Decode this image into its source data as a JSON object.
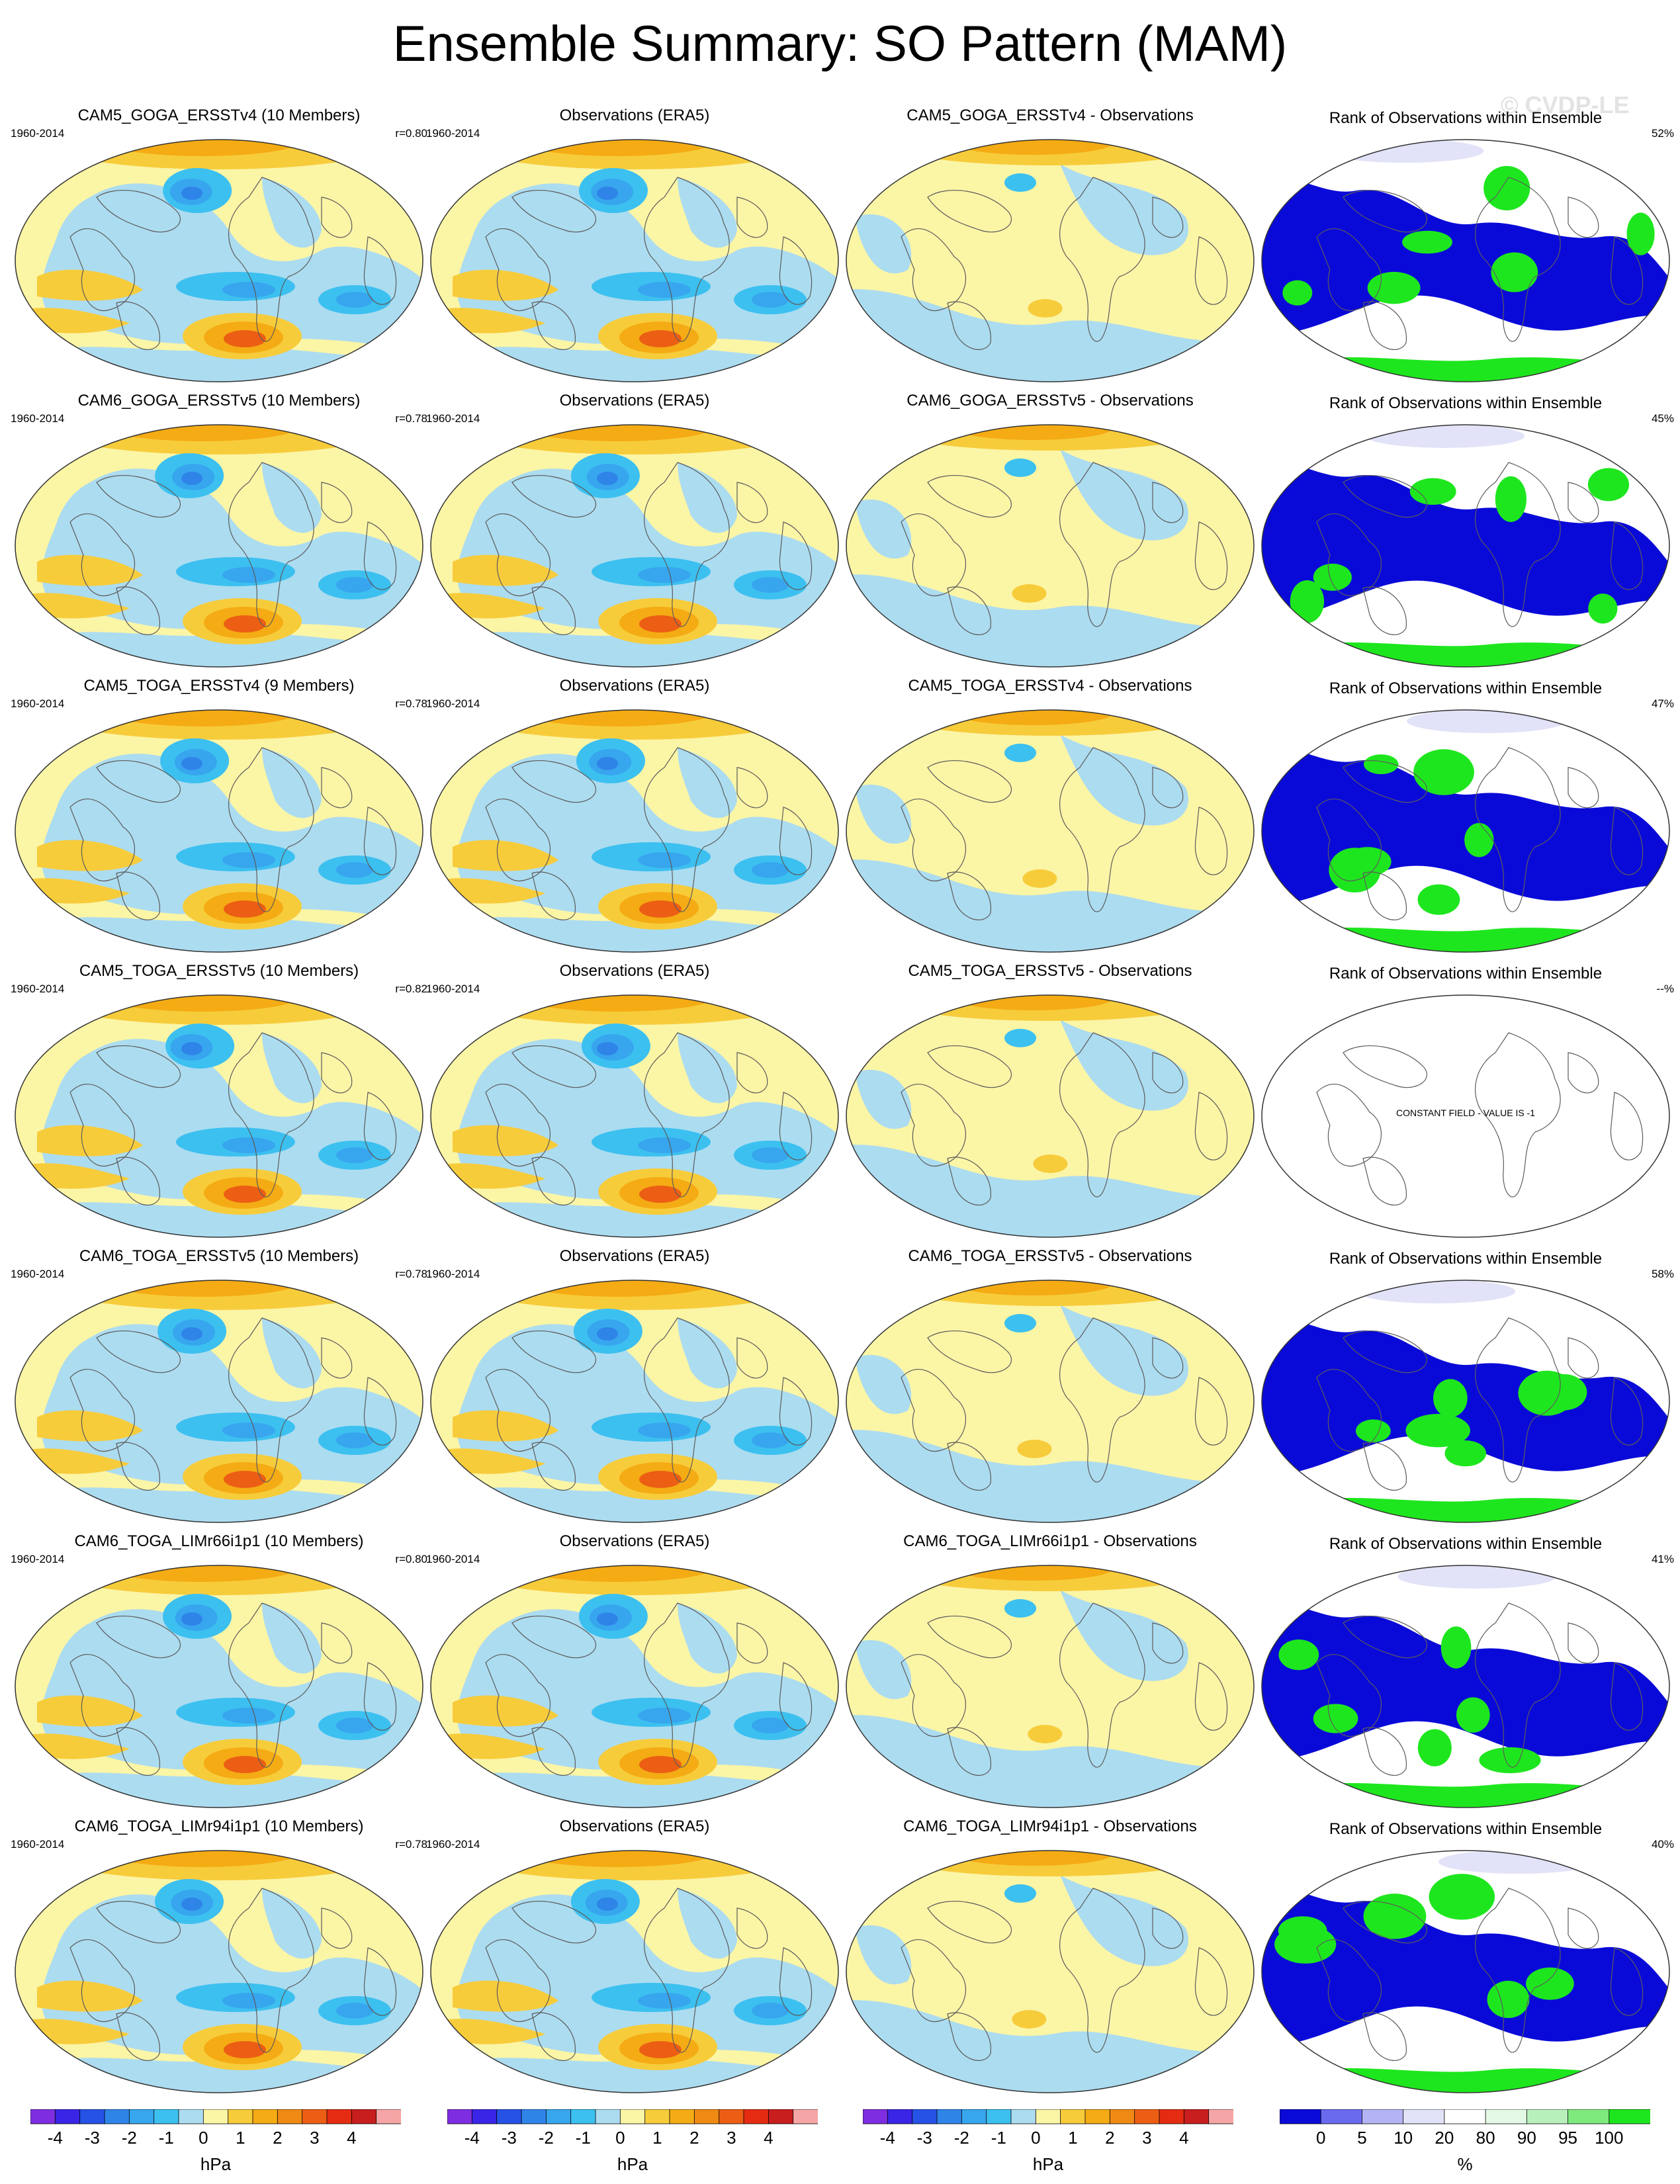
{
  "title": "Ensemble Summary: SO Pattern (MAM)",
  "watermark": "© CVDP-LE",
  "rows": [
    {
      "model_title": "CAM5_GOGA_ERSSTv4 (10 Members)",
      "years": "1960-2014",
      "r": "r=0.80",
      "obs_title": "Observations (ERA5)",
      "diff_title": "CAM5_GOGA_ERSSTv4 - Observations",
      "rank_title": "Rank of Observations within Ensemble",
      "rank_pct": "52%"
    },
    {
      "model_title": "CAM6_GOGA_ERSSTv5 (10 Members)",
      "years": "1960-2014",
      "r": "r=0.78",
      "obs_title": "Observations (ERA5)",
      "diff_title": "CAM6_GOGA_ERSSTv5 - Observations",
      "rank_title": "Rank of Observations within Ensemble",
      "rank_pct": "45%"
    },
    {
      "model_title": "CAM5_TOGA_ERSSTv4 (9 Members)",
      "years": "1960-2014",
      "r": "r=0.78",
      "obs_title": "Observations (ERA5)",
      "diff_title": "CAM5_TOGA_ERSSTv4 - Observations",
      "rank_title": "Rank of Observations within Ensemble",
      "rank_pct": "47%"
    },
    {
      "model_title": "CAM5_TOGA_ERSSTv5 (10 Members)",
      "years": "1960-2014",
      "r": "r=0.82",
      "obs_title": "Observations (ERA5)",
      "diff_title": "CAM5_TOGA_ERSSTv5 - Observations",
      "rank_title": "Rank of Observations within Ensemble",
      "rank_pct": "--%",
      "constant_note": "CONSTANT FIELD - VALUE IS -1"
    },
    {
      "model_title": "CAM6_TOGA_ERSSTv5 (10 Members)",
      "years": "1960-2014",
      "r": "r=0.78",
      "obs_title": "Observations (ERA5)",
      "diff_title": "CAM6_TOGA_ERSSTv5 - Observations",
      "rank_title": "Rank of Observations within Ensemble",
      "rank_pct": "58%"
    },
    {
      "model_title": "CAM6_TOGA_LIMr66i1p1 (10 Members)",
      "years": "1960-2014",
      "r": "r=0.80",
      "obs_title": "Observations (ERA5)",
      "diff_title": "CAM6_TOGA_LIMr66i1p1 - Observations",
      "rank_title": "Rank of Observations within Ensemble",
      "rank_pct": "41%"
    },
    {
      "model_title": "CAM6_TOGA_LIMr94i1p1 (10 Members)",
      "years": "1960-2014",
      "r": "r=0.78",
      "obs_title": "Observations (ERA5)",
      "diff_title": "CAM6_TOGA_LIMr94i1p1 - Observations",
      "rank_title": "Rank of Observations within Ensemble",
      "rank_pct": "40%"
    }
  ],
  "colorbars": {
    "hpa": {
      "ticks": [
        "-4",
        "-3",
        "-2",
        "-1",
        "0",
        "1",
        "2",
        "3",
        "4"
      ],
      "label": "hPa",
      "colors": [
        "#7e2ee0",
        "#3a25e6",
        "#2653e6",
        "#2f84e8",
        "#37a6ee",
        "#3cc0f0",
        "#acdcf0",
        "#fbf5a6",
        "#f7cc3b",
        "#f4ab14",
        "#f08a14",
        "#ec5e14",
        "#e52c12",
        "#c81e1e",
        "#f5a5a5"
      ]
    },
    "pct": {
      "ticks": [
        "0",
        "5",
        "10",
        "20",
        "80",
        "90",
        "95",
        "100"
      ],
      "label": "%",
      "colors": [
        "#0a0ad8",
        "#6a6aee",
        "#b4b4f4",
        "#e2e2f8",
        "#ffffff",
        "#e4f8e6",
        "#b8f0bc",
        "#7eea7e",
        "#1ee61e"
      ]
    }
  },
  "field_colors": {
    "neg3": "#2f84e8",
    "neg2": "#37a6ee",
    "neg1": "#3cc0f0",
    "neg0": "#acdcf0",
    "pos0": "#fbf5a6",
    "pos1": "#f7cc3b",
    "pos2": "#f4ab14",
    "pos3": "#ec5e14",
    "rank_low": "#0a0ad8",
    "rank_high": "#1ee61e",
    "rank_mid": "#e2e2f8"
  }
}
